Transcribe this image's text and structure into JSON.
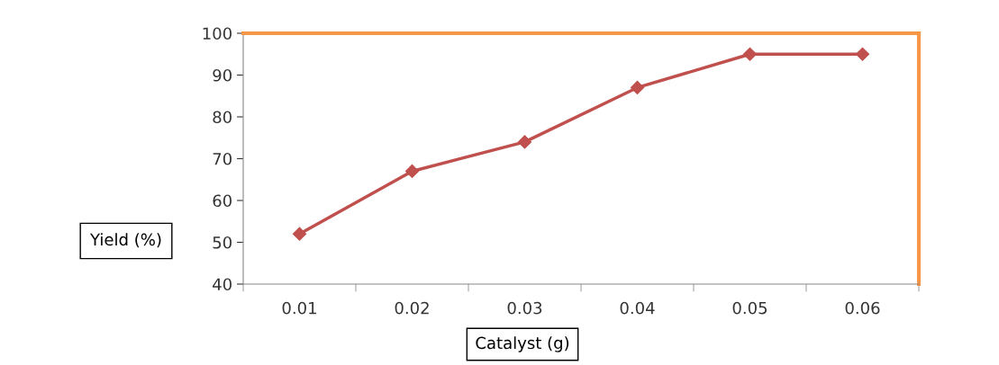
{
  "chart_data": {
    "type": "line",
    "xlabel": "Catalyst (g)",
    "ylabel": "Yield (%)",
    "categories": [
      "0.01",
      "0.02",
      "0.03",
      "0.04",
      "0.05",
      "0.06"
    ],
    "series": [
      {
        "color": "#c0504d",
        "values": [
          52,
          67,
          74,
          87,
          95,
          95
        ]
      }
    ],
    "ylim": [
      40,
      100
    ],
    "yticks": [
      40,
      50,
      60,
      70,
      80,
      90,
      100
    ],
    "marker": "diamond",
    "line_style": "solid",
    "grid": false,
    "legend": false
  }
}
